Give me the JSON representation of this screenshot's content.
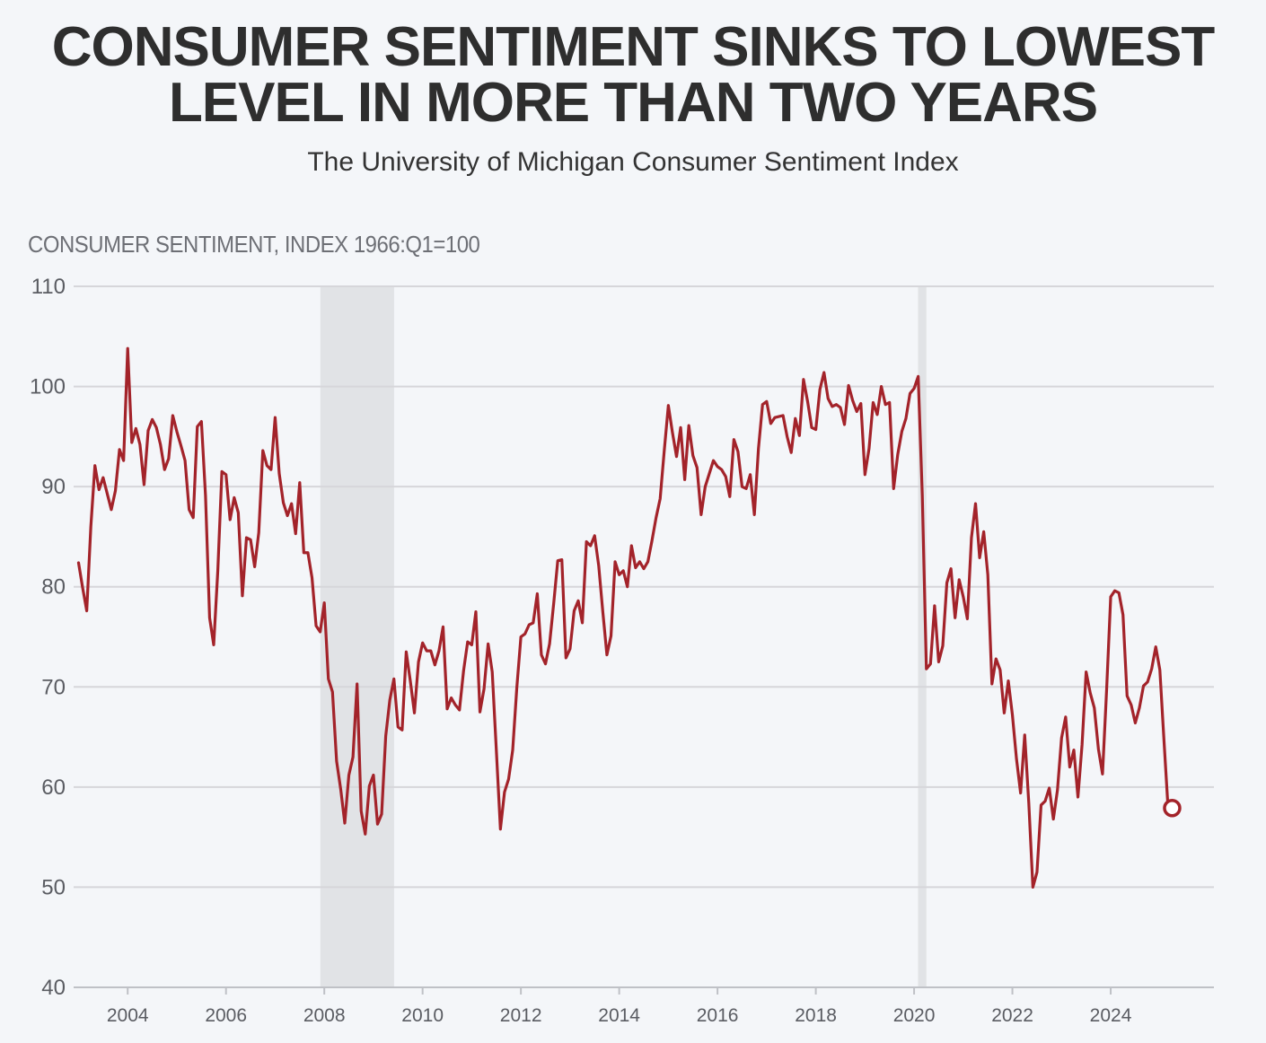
{
  "title": "CONSUMER SENTIMENT SINKS TO LOWEST LEVEL IN MORE THAN TWO YEARS",
  "subtitle": "The University of Michigan Consumer Sentiment Index",
  "colors": {
    "line": "#a3232a",
    "grid": "#d6d6da",
    "recession": "#e1e3e6",
    "background": "#f4f6f9"
  },
  "chart_data": {
    "type": "line",
    "title": "CONSUMER SENTIMENT SINKS TO LOWEST LEVEL IN MORE THAN TWO YEARS",
    "subtitle": "The University of Michigan Consumer Sentiment Index",
    "ylabel": "CONSUMER SENTIMENT, INDEX 1966:Q1=100",
    "xlabel": "",
    "ylim": [
      40,
      110
    ],
    "xlim": [
      2002.9,
      2026.1
    ],
    "yticks": [
      40,
      50,
      60,
      70,
      80,
      90,
      100,
      110
    ],
    "xticks": [
      "2004",
      "2006",
      "2008",
      "2010",
      "2012",
      "2014",
      "2016",
      "2018",
      "2020",
      "2022",
      "2024"
    ],
    "grid": true,
    "recession_shading": [
      [
        2007.92,
        2009.42
      ],
      [
        2020.08,
        2020.25
      ]
    ],
    "last_point_marker": {
      "x": 2025.25,
      "y": 57.9
    },
    "series": [
      {
        "name": "Consumer Sentiment Index",
        "x_start": 2003.0,
        "x_step_months": 1,
        "values": [
          82.4,
          79.9,
          77.6,
          86.0,
          92.1,
          89.7,
          90.9,
          89.3,
          87.7,
          89.6,
          93.7,
          92.6,
          103.8,
          94.4,
          95.8,
          94.2,
          90.2,
          95.6,
          96.7,
          95.9,
          94.2,
          91.7,
          92.8,
          97.1,
          95.5,
          94.1,
          92.6,
          87.7,
          86.9,
          96.0,
          96.5,
          89.1,
          76.9,
          74.2,
          81.6,
          91.5,
          91.2,
          86.7,
          88.9,
          87.4,
          79.1,
          84.9,
          84.7,
          82.0,
          85.4,
          93.6,
          92.1,
          91.7,
          96.9,
          91.3,
          88.4,
          87.1,
          88.3,
          85.3,
          90.4,
          83.4,
          83.4,
          80.9,
          76.1,
          75.5,
          78.4,
          70.8,
          69.5,
          62.6,
          59.8,
          56.4,
          61.2,
          63.0,
          70.3,
          57.6,
          55.3,
          60.1,
          61.2,
          56.3,
          57.3,
          65.1,
          68.7,
          70.8,
          66.0,
          65.7,
          73.5,
          70.6,
          67.4,
          72.5,
          74.4,
          73.6,
          73.6,
          72.2,
          73.6,
          76.0,
          67.8,
          68.9,
          68.2,
          67.7,
          71.6,
          74.5,
          74.2,
          77.5,
          67.5,
          69.8,
          74.3,
          71.5,
          63.7,
          55.8,
          59.5,
          60.8,
          63.7,
          69.9,
          75.0,
          75.3,
          76.2,
          76.4,
          79.3,
          73.2,
          72.3,
          74.3,
          78.3,
          82.6,
          82.7,
          72.9,
          73.8,
          77.6,
          78.6,
          76.4,
          84.5,
          84.1,
          85.1,
          82.1,
          77.5,
          73.2,
          75.1,
          82.5,
          81.2,
          81.6,
          80.0,
          84.1,
          81.9,
          82.5,
          81.8,
          82.5,
          84.6,
          86.9,
          88.8,
          93.6,
          98.1,
          95.4,
          93.0,
          95.9,
          90.7,
          96.1,
          93.1,
          91.9,
          87.2,
          90.0,
          91.3,
          92.6,
          92.0,
          91.7,
          91.0,
          89.0,
          94.7,
          93.5,
          90.0,
          89.8,
          91.2,
          87.2,
          93.8,
          98.2,
          98.5,
          96.3,
          96.9,
          97.0,
          97.1,
          95.0,
          93.4,
          96.8,
          95.1,
          100.7,
          98.5,
          95.9,
          95.7,
          99.7,
          101.4,
          98.8,
          98.0,
          98.2,
          97.9,
          96.2,
          100.1,
          98.6,
          97.5,
          98.3,
          91.2,
          93.8,
          98.4,
          97.2,
          100.0,
          98.2,
          98.4,
          89.8,
          93.2,
          95.5,
          96.8,
          99.3,
          99.8,
          101.0,
          89.1,
          71.8,
          72.3,
          78.1,
          72.5,
          74.1,
          80.4,
          81.8,
          76.9,
          80.7,
          79.0,
          76.8,
          84.9,
          88.3,
          82.9,
          85.5,
          81.2,
          70.3,
          72.8,
          71.7,
          67.4,
          70.6,
          67.2,
          62.8,
          59.4,
          65.2,
          58.4,
          50.0,
          51.5,
          58.2,
          58.6,
          59.9,
          56.8,
          59.7,
          64.9,
          67.0,
          62.0,
          63.7,
          59.0,
          64.2,
          71.5,
          69.4,
          67.9,
          63.8,
          61.3,
          69.7,
          79.0,
          79.6,
          79.4,
          77.2,
          69.1,
          68.2,
          66.4,
          67.9,
          70.1,
          70.5,
          71.8,
          74.0,
          71.7,
          64.7,
          57.9
        ]
      }
    ]
  }
}
